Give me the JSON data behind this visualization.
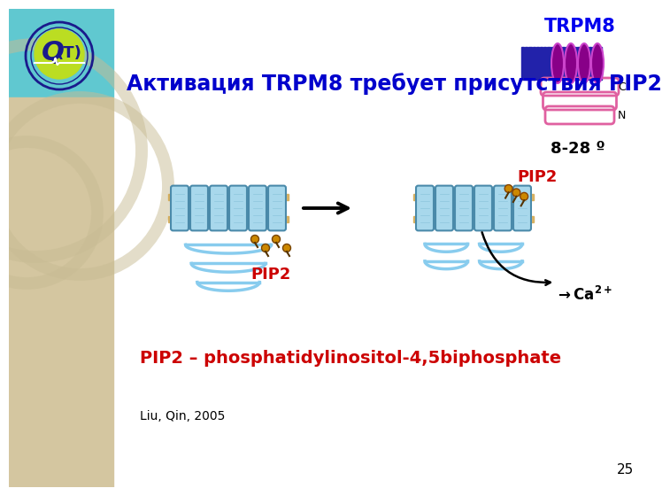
{
  "title": "Активация TRPM8 требует присутствия PIP2",
  "title_color": "#0000CC",
  "title_fontsize": 17,
  "subtitle": "PIP2 – phosphatidylinositol-4,5biphosphate",
  "subtitle_color": "#CC0000",
  "subtitle_fontsize": 14,
  "citation": "Liu, Qin, 2005",
  "citation_fontsize": 10,
  "trpm8_label": "TRPM8",
  "trpm8_color": "#0000EE",
  "trpm8_fontsize": 15,
  "temp_label": "8-28 º",
  "temp_fontsize": 13,
  "pip2_left": "PIP2",
  "pip2_right": "PIP2",
  "pip2_color": "#CC0000",
  "pip2_fontsize": 13,
  "page_number": "25",
  "bg_color": "#FFFFFF",
  "left_sidebar_color": "#D4C6A0",
  "top_left_bg": "#60C8D0",
  "membrane_color_top": "#D4A855",
  "membrane_color_bot": "#D4A855",
  "helix_fill": "#A8D4E8",
  "helix_stroke": "#5599BB",
  "coil_color": "#88CCEE",
  "bar_blue": "#2222AA",
  "bar_purple": "#880088",
  "coil_pink": "#E060A0"
}
